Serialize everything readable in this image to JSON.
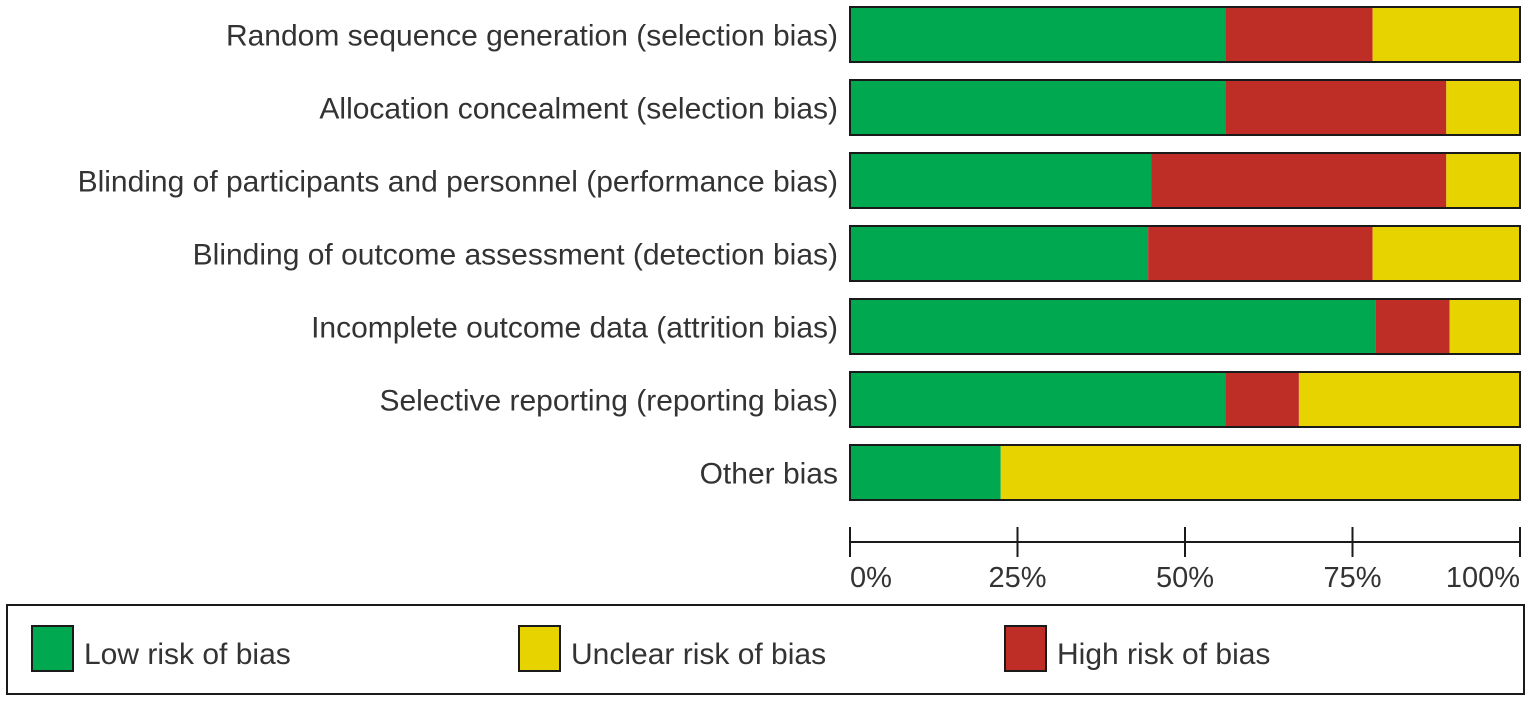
{
  "chart_data": {
    "type": "bar",
    "orientation": "horizontal",
    "stacked": true,
    "categories": [
      "Random sequence generation (selection bias)",
      "Allocation concealment (selection bias)",
      "Blinding of participants and personnel (performance bias)",
      "Blinding of outcome assessment (detection bias)",
      "Incomplete outcome data (attrition bias)",
      "Selective reporting (reporting bias)",
      "Other bias"
    ],
    "series": [
      {
        "name": "Low risk of bias",
        "key": "low",
        "color": "#00a84f",
        "values": [
          56,
          56,
          45,
          44.5,
          78.5,
          56,
          22.5
        ]
      },
      {
        "name": "High risk of bias",
        "key": "high",
        "color": "#bf2d27",
        "values": [
          22,
          33,
          44,
          33.5,
          11,
          11,
          0
        ]
      },
      {
        "name": "Unclear risk of bias",
        "key": "unclear",
        "color": "#e6d300",
        "values": [
          22,
          11,
          11,
          22,
          10.5,
          33,
          77.5
        ]
      }
    ],
    "xlim": [
      0,
      100
    ],
    "xticks": [
      "0%",
      "25%",
      "50%",
      "75%",
      "100%"
    ],
    "legend": [
      {
        "label": "Low risk of bias",
        "color": "#00a84f"
      },
      {
        "label": "Unclear risk of bias",
        "color": "#e6d300"
      },
      {
        "label": "High risk of bias",
        "color": "#bf2d27"
      }
    ],
    "legend_position": "bottom"
  }
}
